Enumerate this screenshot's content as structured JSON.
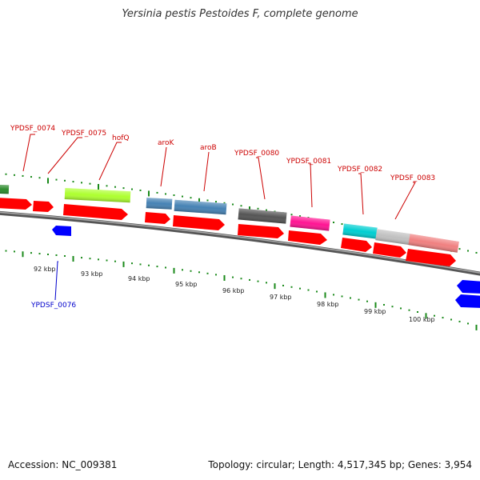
{
  "title": "Yersinia pestis Pestoides F, complete genome",
  "accession": "Accession: NC_009381",
  "stats": "Topology: circular; Length: 4,517,345 bp; Genes: 3,954",
  "colors": {
    "gene_label": "#cc0000",
    "minus_label": "#0000cc",
    "backbone": "#777777",
    "tick": "#1a8a1a",
    "cds": "#ff0000",
    "minus_gene": "#0000ff"
  },
  "kbp_labels": [
    "92 kbp",
    "93 kbp",
    "94 kbp",
    "95 kbp",
    "96 kbp",
    "97 kbp",
    "98 kbp",
    "99 kbp",
    "100 kbp"
  ],
  "gene_labels": [
    "YPDSF_0074",
    "YPDSF_0075",
    "hofQ",
    "aroK",
    "aroB",
    "YPDSF_0080",
    "YPDSF_0081",
    "YPDSF_0082",
    "YPDSF_0083"
  ],
  "minus_labels": [
    "YPDSF_0076"
  ],
  "gene_colors": {
    "YPDSF_0074": "#2e8b2e",
    "hofQ": "#adff2f",
    "aroK": "#4682b4",
    "aroB": "#4682b4",
    "YPDSF_0080": "#555555",
    "YPDSF_0081": "#ff1493",
    "YPDSF_0082": "#00ced1",
    "YPDSF_0082b": "#c0c0c0",
    "YPDSF_0083": "#f08080"
  }
}
